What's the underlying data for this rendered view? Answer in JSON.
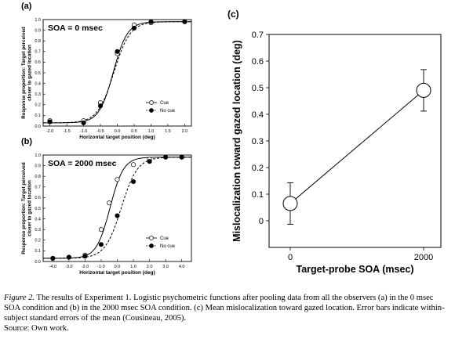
{
  "panels": {
    "a": {
      "letter": "(a)",
      "soa_text": "SOA = 0 msec",
      "ylabel_lines": [
        "Response proportion: Target perceived",
        "closer to gazed location"
      ],
      "xlabel": "Horizontal target position (deg)",
      "xticks": [
        "-2.0",
        "-1.5",
        "-1.0",
        "-0.5",
        "0.0",
        "0.5",
        "1.0",
        "1.5",
        "2.0"
      ],
      "yticks": [
        "0.0",
        "0.1",
        "0.2",
        "0.3",
        "0.4",
        "0.5",
        "0.6",
        "0.7",
        "0.8",
        "0.9",
        "1.0"
      ],
      "legend": [
        "Cue",
        "No cue"
      ]
    },
    "b": {
      "letter": "(b)",
      "soa_text": "SOA = 2000 msec",
      "ylabel_lines": [
        "Response proportion: Target perceived",
        "closer to gazed location"
      ],
      "xlabel": "Horizontal target position (deg)",
      "xticks": [
        "-4.0",
        "-3.0",
        "-2.0",
        "-1.0",
        "0.0",
        "1.0",
        "2.0",
        "3.0",
        "4.0"
      ],
      "yticks": [
        "0.0",
        "0.1",
        "0.2",
        "0.3",
        "0.4",
        "0.5",
        "0.6",
        "0.7",
        "0.8",
        "0.9",
        "1.0"
      ],
      "legend": [
        "Cue",
        "No cue"
      ]
    },
    "c": {
      "letter": "(c)",
      "ylabel": "Mislocalization toward gazed location (deg)",
      "xlabel": "Target-probe SOA (msec)",
      "xticks": [
        "0",
        "2000"
      ],
      "yticks": [
        "0",
        "0.1",
        "0.2",
        "0.3",
        "0.4",
        "0.5",
        "0.6",
        "0.7"
      ]
    }
  },
  "chart_data": [
    {
      "panel": "a",
      "type": "line",
      "xlim": [
        -2.2,
        2.2
      ],
      "ylim": [
        0,
        1
      ],
      "series": [
        {
          "name": "Cue",
          "marker": "open-circle",
          "x": [
            -2.0,
            -1.0,
            -0.5,
            0.0,
            0.5,
            1.0,
            2.0
          ],
          "y": [
            0.05,
            0.05,
            0.22,
            0.68,
            0.95,
            0.97,
            0.98
          ]
        },
        {
          "name": "No cue",
          "marker": "filled-circle",
          "x": [
            -2.0,
            -1.0,
            -0.5,
            0.0,
            0.5,
            1.0,
            2.0
          ],
          "y": [
            0.04,
            0.03,
            0.19,
            0.7,
            0.92,
            0.98,
            0.98
          ]
        }
      ]
    },
    {
      "panel": "b",
      "type": "line",
      "xlim": [
        -4.6,
        4.6
      ],
      "ylim": [
        0,
        1
      ],
      "series": [
        {
          "name": "Cue",
          "marker": "open-circle",
          "x": [
            -4.0,
            -3.0,
            -2.0,
            -1.0,
            -0.5,
            0.0,
            1.0,
            2.0,
            3.0,
            4.0
          ],
          "y": [
            0.03,
            0.04,
            0.06,
            0.3,
            0.55,
            0.77,
            0.91,
            0.96,
            0.98,
            0.98
          ]
        },
        {
          "name": "No cue",
          "marker": "filled-circle",
          "x": [
            -4.0,
            -3.0,
            -2.0,
            -1.0,
            0.0,
            1.0,
            2.0,
            3.0,
            4.0
          ],
          "y": [
            0.03,
            0.04,
            0.05,
            0.16,
            0.43,
            0.75,
            0.94,
            0.98,
            0.98
          ]
        }
      ]
    },
    {
      "panel": "c",
      "type": "line",
      "categories": [
        "0",
        "2000"
      ],
      "ylim": [
        -0.1,
        0.7
      ],
      "series": [
        {
          "values": [
            0.065,
            0.49
          ],
          "error": [
            0.078,
            0.078
          ]
        }
      ]
    }
  ],
  "caption": {
    "figure_label": "Figure 2.",
    "text": "The results of Experiment 1. Logistic psychometric functions after pooling data from all the observers (a) in the 0 msec SOA condition and (b) in the 2000 msec SOA condition. (c) Mean mislocalization toward gazed location. Error bars indicate within-subject standard errors of the mean (Cousineau, 2005).",
    "source": "Source: Own work."
  }
}
